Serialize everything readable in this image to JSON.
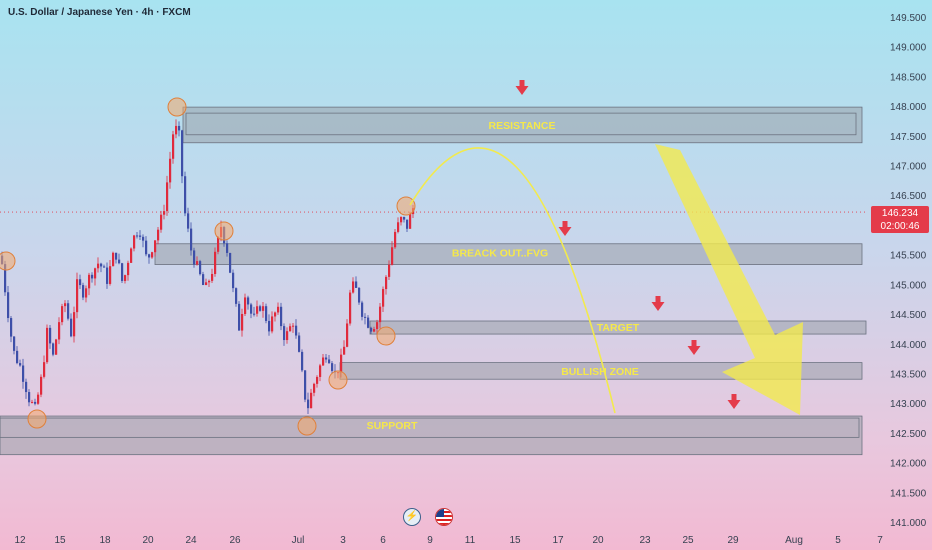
{
  "header": {
    "title": "U.S. Dollar / Japanese Yen · 4h · FXCM"
  },
  "price_tag": {
    "price": "146.234",
    "countdown": "02:00:46"
  },
  "icons": {
    "lightning": "lightning-icon",
    "flag": "us-flag-icon"
  },
  "colors": {
    "up": "#e02a3c",
    "down": "#3e4fa8",
    "zone_fill": "#9aa0aa",
    "label": "#f5e84a",
    "arrow": "#e43b4a",
    "projection": "#f2ea4e"
  },
  "chart_data": {
    "type": "candlestick",
    "symbol": "U.S. Dollar / Japanese Yen",
    "timeframe": "4h",
    "source": "FXCM",
    "ylim": [
      141.0,
      149.5
    ],
    "yticks": [
      "149.500",
      "149.000",
      "148.500",
      "148.000",
      "147.500",
      "147.000",
      "146.500",
      "146.000",
      "145.500",
      "145.000",
      "144.500",
      "144.000",
      "143.500",
      "143.000",
      "142.500",
      "142.000",
      "141.500",
      "141.000"
    ],
    "xticks": [
      "12",
      "15",
      "18",
      "20",
      "24",
      "26",
      "Jul",
      "3",
      "6",
      "9",
      "11",
      "15",
      "17",
      "20",
      "23",
      "25",
      "29",
      "Aug",
      "5",
      "7"
    ],
    "last_price": 146.234,
    "price_path": [
      [
        0,
        145.5
      ],
      [
        5,
        144.8
      ],
      [
        12,
        143.9
      ],
      [
        20,
        143.6
      ],
      [
        28,
        143.1
      ],
      [
        34,
        142.9
      ],
      [
        40,
        143.4
      ],
      [
        46,
        144.2
      ],
      [
        52,
        143.8
      ],
      [
        58,
        144.4
      ],
      [
        64,
        144.7
      ],
      [
        70,
        144.2
      ],
      [
        76,
        145.0
      ],
      [
        82,
        144.9
      ],
      [
        90,
        145.2
      ],
      [
        98,
        145.4
      ],
      [
        106,
        145.1
      ],
      [
        114,
        145.6
      ],
      [
        122,
        145.0
      ],
      [
        130,
        145.7
      ],
      [
        138,
        146.0
      ],
      [
        146,
        145.4
      ],
      [
        154,
        145.8
      ],
      [
        162,
        146.2
      ],
      [
        168,
        147.0
      ],
      [
        173,
        147.7
      ],
      [
        178,
        147.5
      ],
      [
        184,
        146.2
      ],
      [
        190,
        145.6
      ],
      [
        196,
        145.3
      ],
      [
        204,
        144.9
      ],
      [
        212,
        145.3
      ],
      [
        220,
        146.0
      ],
      [
        226,
        145.6
      ],
      [
        232,
        144.9
      ],
      [
        238,
        144.3
      ],
      [
        244,
        144.9
      ],
      [
        252,
        144.4
      ],
      [
        260,
        144.7
      ],
      [
        268,
        144.3
      ],
      [
        276,
        144.6
      ],
      [
        284,
        144.1
      ],
      [
        292,
        144.4
      ],
      [
        300,
        143.6
      ],
      [
        306,
        142.9
      ],
      [
        312,
        143.3
      ],
      [
        318,
        143.6
      ],
      [
        326,
        143.9
      ],
      [
        334,
        143.5
      ],
      [
        342,
        143.8
      ],
      [
        350,
        145.0
      ],
      [
        356,
        144.9
      ],
      [
        362,
        144.5
      ],
      [
        370,
        144.3
      ],
      [
        376,
        144.4
      ],
      [
        382,
        144.9
      ],
      [
        388,
        145.4
      ],
      [
        394,
        145.9
      ],
      [
        400,
        146.1
      ],
      [
        406,
        146.0
      ],
      [
        412,
        146.3
      ]
    ],
    "zones": [
      {
        "name": "RESISTANCE",
        "top": 148.0,
        "bottom": 147.4,
        "label_price": 147.7
      },
      {
        "name": "BREACK OUT..FVG",
        "top": 145.7,
        "bottom": 145.35,
        "label_price": 145.55
      },
      {
        "name": "TARGET",
        "top": 144.4,
        "bottom": 144.18,
        "label_price": 144.3
      },
      {
        "name": "BULLISH ZONE",
        "top": 143.7,
        "bottom": 143.42,
        "label_price": 143.56
      },
      {
        "name": "SUPPORT",
        "top": 142.8,
        "bottom": 142.15,
        "label_price": 142.65
      }
    ],
    "projection_arc": {
      "start": [
        "Jul 7",
        146.3
      ],
      "peak": [
        "Jul 11",
        147.5
      ],
      "end": [
        "Jul 21",
        142.9
      ]
    },
    "projection_arrow": {
      "from": [
        "Jul 23",
        147.4
      ],
      "to": [
        "Jul 31",
        142.8
      ]
    }
  }
}
